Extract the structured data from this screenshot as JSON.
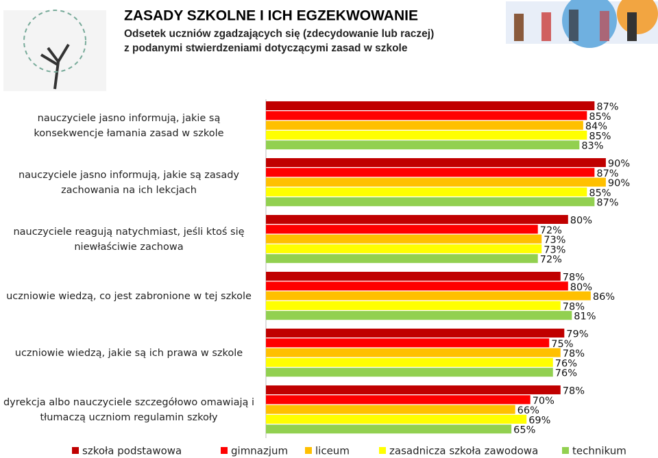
{
  "chart_data": {
    "type": "bar",
    "orientation": "horizontal",
    "title": "ZASADY SZKOLNE I ICH EGZEKWOWANIE",
    "subtitle": [
      "Odsetek uczniów zgadzających się (zdecydowanie lub raczej)",
      "z podanymi stwierdzeniami dotyczącymi zasad w szkole"
    ],
    "categories": [
      "nauczyciele jasno informują, jakie są konsekwencje łamania zasad w szkole",
      "nauczyciele jasno informują, jakie są zasady zachowania na ich lekcjach",
      "nauczyciele reagują natychmiast, jeśli ktoś się niewłaściwie zachowa",
      "uczniowie wiedzą, co jest zabronione w tej szkole",
      "uczniowie wiedzą, jakie są ich prawa w szkole",
      "dyrekcja albo nauczyciele szczegółowo omawiają i tłumaczą uczniom regulamin szkoły"
    ],
    "series": [
      {
        "name": "szkoła podstawowa",
        "color": "#c00000",
        "values": [
          87,
          90,
          80,
          78,
          79,
          78
        ],
        "value_labels": [
          "87%",
          "90%",
          "80%",
          "78%",
          "79%",
          "78%"
        ]
      },
      {
        "name": "gimnazjum",
        "color": "#ff0000",
        "values": [
          85,
          87,
          72,
          80,
          75,
          70
        ],
        "value_labels": [
          "85%",
          "87%",
          "72%",
          "80%",
          "75%",
          "70%"
        ]
      },
      {
        "name": "liceum",
        "color": "#ffc000",
        "values": [
          84,
          90,
          73,
          86,
          78,
          66
        ],
        "value_labels": [
          "84%",
          "90%",
          "73%",
          "86%",
          "78%",
          "66%"
        ]
      },
      {
        "name": "zasadnicza szkoła zawodowa",
        "color": "#ffff00",
        "values": [
          85,
          85,
          73,
          78,
          76,
          69
        ],
        "value_labels": [
          "85%",
          "85%",
          "73%",
          "78%",
          "76%",
          "69%"
        ]
      },
      {
        "name": "technikum",
        "color": "#92d050",
        "values": [
          83,
          87,
          72,
          81,
          76,
          65
        ],
        "value_labels": [
          "83%",
          "87%",
          "72%",
          "81%",
          "76%",
          "65%"
        ]
      }
    ]
  }
}
